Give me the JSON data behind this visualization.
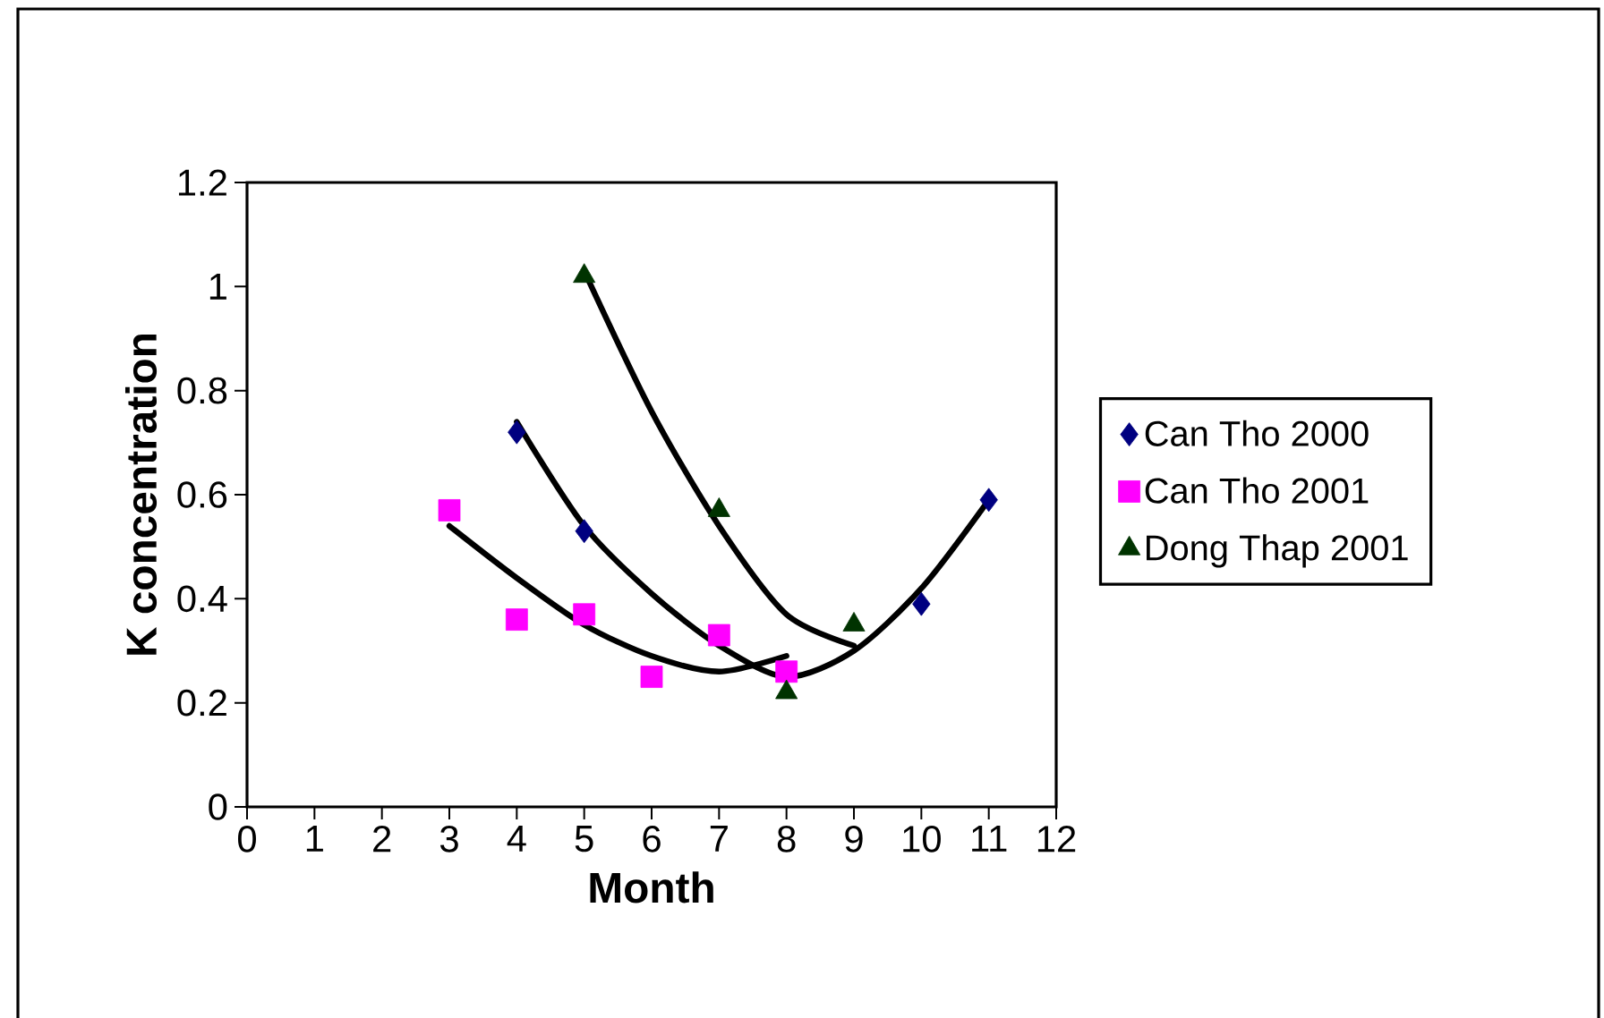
{
  "chart_data": {
    "type": "scatter",
    "xlabel": "Month",
    "ylabel": "K concentration",
    "xlim": [
      0,
      12
    ],
    "xticks": [
      0,
      1,
      2,
      3,
      4,
      5,
      6,
      7,
      8,
      9,
      10,
      11,
      12
    ],
    "ylim": [
      0,
      1.2
    ],
    "yticks": [
      0,
      0.2,
      0.4,
      0.6,
      0.8,
      1,
      1.2
    ],
    "grid": false,
    "legend": "right",
    "series": [
      {
        "name": "Can Tho 2000",
        "marker": "diamond",
        "color": "#000080",
        "x": [
          4,
          5,
          10,
          11
        ],
        "values": [
          0.72,
          0.53,
          0.39,
          0.59
        ]
      },
      {
        "name": "Can Tho 2001",
        "marker": "square",
        "color": "#ff00ff",
        "x": [
          3,
          4,
          5,
          6,
          7,
          8
        ],
        "values": [
          0.57,
          0.36,
          0.37,
          0.25,
          0.33,
          0.26
        ]
      },
      {
        "name": "Dong Thap 2001",
        "marker": "triangle",
        "color": "#003300",
        "x": [
          5,
          7,
          8,
          9
        ],
        "values": [
          1.02,
          0.57,
          0.22,
          0.35
        ]
      },
      {
        "type": "line",
        "marker": "none",
        "color": "#000000",
        "x": [
          4,
          5,
          6,
          7,
          8,
          9,
          10,
          11
        ],
        "values": [
          0.74,
          0.54,
          0.41,
          0.31,
          0.25,
          0.3,
          0.42,
          0.59
        ]
      },
      {
        "type": "line",
        "marker": "none",
        "color": "#000000",
        "x": [
          3,
          4,
          5,
          6,
          7,
          8
        ],
        "values": [
          0.54,
          0.44,
          0.35,
          0.29,
          0.26,
          0.29
        ]
      },
      {
        "type": "line",
        "marker": "none",
        "color": "#000000",
        "x": [
          5,
          6,
          7,
          8,
          9
        ],
        "values": [
          1.03,
          0.76,
          0.54,
          0.37,
          0.31
        ]
      }
    ]
  }
}
